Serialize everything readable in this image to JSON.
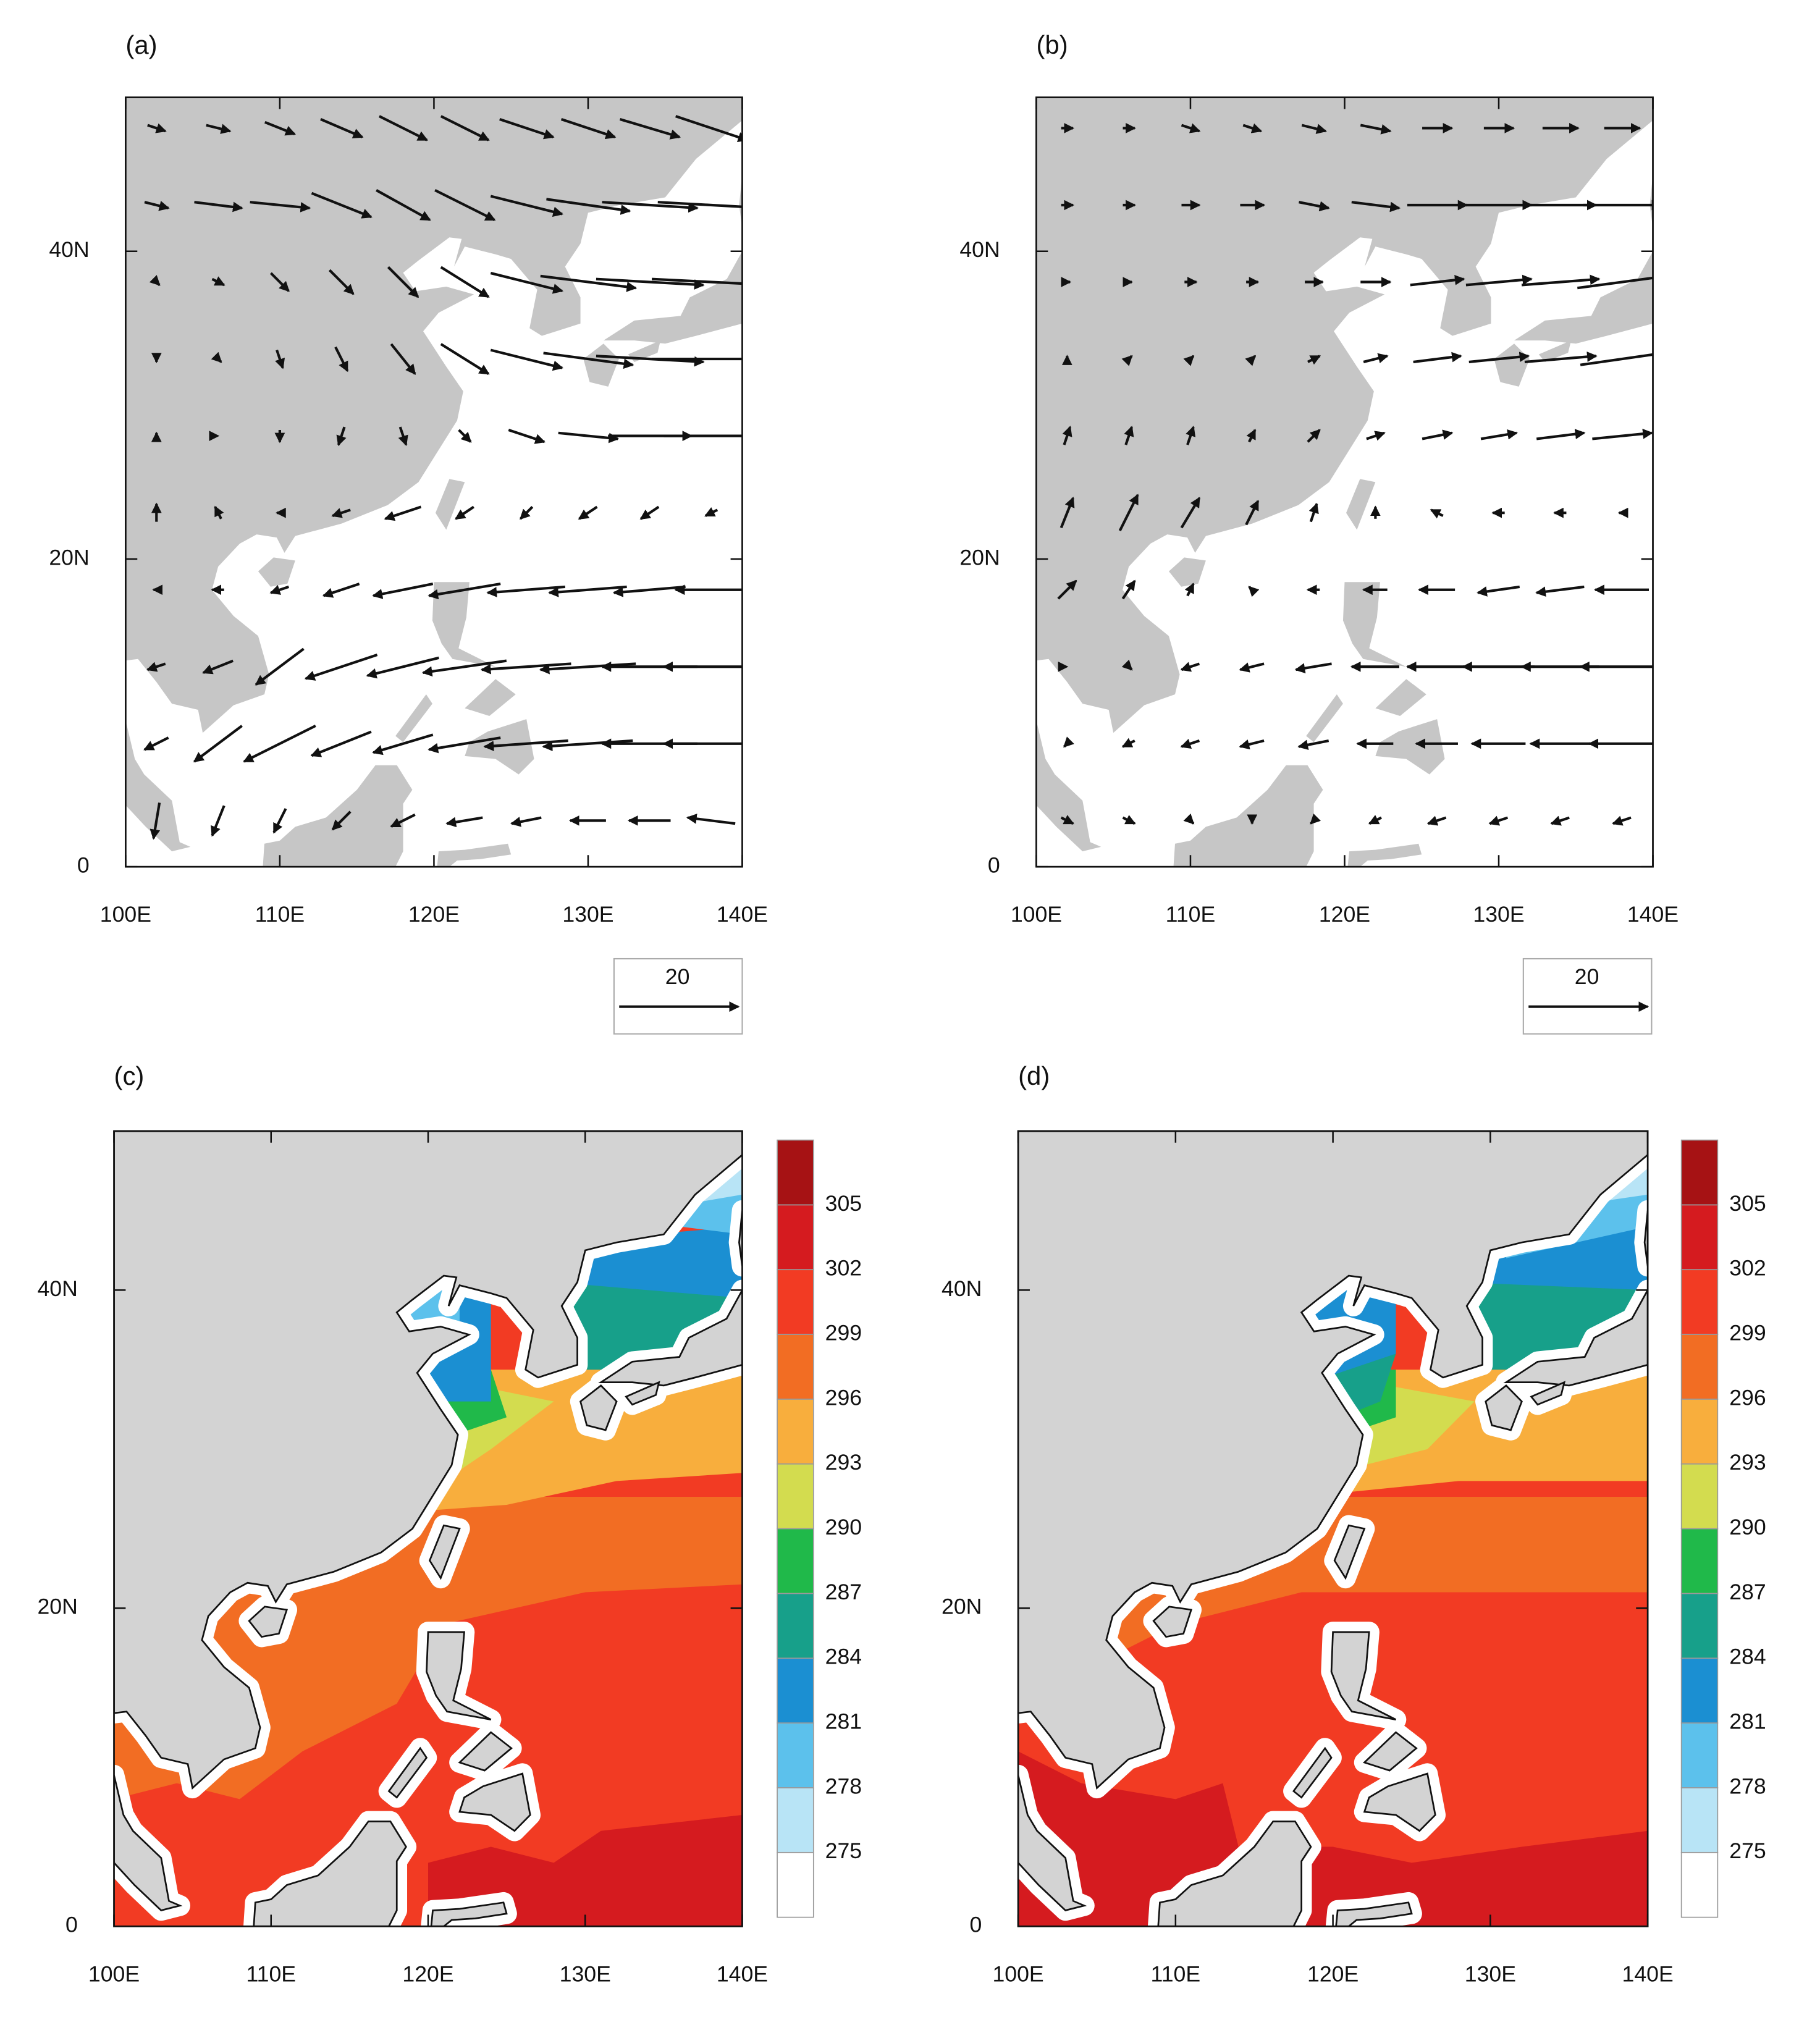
{
  "chart_data": [
    {
      "type": "vector",
      "label": "(a)",
      "xlim": [
        100,
        140
      ],
      "ylim": [
        0,
        50
      ],
      "xticks": [
        {
          "value": 100,
          "label": "100E"
        },
        {
          "value": 110,
          "label": "110E"
        },
        {
          "value": 120,
          "label": "120E"
        },
        {
          "value": 130,
          "label": "130E"
        },
        {
          "value": 140,
          "label": "140E"
        }
      ],
      "yticks": [
        0,
        {
          "value": 20,
          "label": "20N"
        },
        {
          "value": 40,
          "label": "40N"
        }
      ],
      "lon": [
        102,
        106,
        110,
        114,
        118,
        122,
        126,
        130,
        134,
        138
      ],
      "lat": [
        48,
        43,
        38,
        33,
        28,
        23,
        18,
        13,
        8,
        3
      ],
      "u": [
        [
          3,
          4,
          5,
          7,
          8,
          8,
          9,
          9,
          10,
          12
        ],
        [
          4,
          8,
          10,
          10,
          9,
          10,
          12,
          14,
          16,
          18
        ],
        [
          1,
          2,
          3,
          4,
          5,
          8,
          12,
          16,
          18,
          20
        ],
        [
          0,
          1,
          1,
          2,
          4,
          8,
          12,
          15,
          18,
          20
        ],
        [
          0,
          0,
          0,
          -1,
          1,
          2,
          6,
          10,
          14,
          16
        ],
        [
          0,
          -1,
          -1,
          -3,
          -6,
          -3,
          -2,
          -3,
          -3,
          -2
        ],
        [
          -1,
          -2,
          -3,
          -6,
          -10,
          -12,
          -13,
          -13,
          -12,
          -12
        ],
        [
          -3,
          -5,
          -8,
          -12,
          -12,
          -14,
          -15,
          -16,
          -16,
          -16
        ],
        [
          -4,
          -8,
          -12,
          -10,
          -10,
          -12,
          -14,
          -15,
          -16,
          -16
        ],
        [
          -1,
          -2,
          -2,
          -3,
          -4,
          -6,
          -5,
          -6,
          -7,
          -8
        ]
      ],
      "v": [
        [
          -1,
          -1,
          -2,
          -3,
          -4,
          -4,
          -3,
          -3,
          -3,
          -4
        ],
        [
          -1,
          -1,
          -1,
          -4,
          -5,
          -5,
          -3,
          -2,
          -1,
          -1
        ],
        [
          -1,
          -1,
          -3,
          -4,
          -5,
          -5,
          -3,
          -2,
          -1,
          -1
        ],
        [
          -1,
          -1,
          -3,
          -4,
          -5,
          -5,
          -3,
          -2,
          -1,
          0
        ],
        [
          1,
          0,
          -2,
          -3,
          -3,
          -2,
          -2,
          -1,
          0,
          0
        ],
        [
          3,
          2,
          0,
          -1,
          -2,
          -2,
          -2,
          -2,
          -2,
          -1
        ],
        [
          0,
          0,
          -1,
          -2,
          -2,
          -2,
          -1,
          -1,
          -1,
          0
        ],
        [
          -1,
          -2,
          -6,
          -4,
          -3,
          -2,
          -1,
          -1,
          0,
          0
        ],
        [
          -2,
          -6,
          -6,
          -4,
          -3,
          -2,
          -1,
          -1,
          0,
          0
        ],
        [
          -6,
          -5,
          -4,
          -3,
          -2,
          -1,
          -1,
          0,
          0,
          1
        ]
      ],
      "ref_vector": {
        "magnitude": 20
      }
    },
    {
      "type": "vector",
      "label": "(b)",
      "xlim": [
        100,
        140
      ],
      "ylim": [
        0,
        50
      ],
      "xticks": [
        {
          "value": 100,
          "label": "100E"
        },
        {
          "value": 110,
          "label": "110E"
        },
        {
          "value": 120,
          "label": "120E"
        },
        {
          "value": 130,
          "label": "130E"
        },
        {
          "value": 140,
          "label": "140E"
        }
      ],
      "yticks": [
        0,
        {
          "value": 20,
          "label": "20N"
        },
        {
          "value": 40,
          "label": "40N"
        }
      ],
      "lon": [
        102,
        106,
        110,
        114,
        118,
        122,
        126,
        130,
        134,
        138
      ],
      "lat": [
        48,
        43,
        38,
        33,
        28,
        23,
        18,
        13,
        8,
        3
      ],
      "u": [
        [
          2,
          2,
          3,
          3,
          4,
          5,
          5,
          5,
          6,
          6
        ],
        [
          2,
          2,
          3,
          4,
          5,
          8,
          10,
          11,
          12,
          13
        ],
        [
          1,
          1,
          2,
          2,
          3,
          5,
          9,
          11,
          13,
          15
        ],
        [
          0,
          1,
          1,
          1,
          2,
          4,
          8,
          10,
          12,
          14
        ],
        [
          1,
          1,
          1,
          1,
          2,
          3,
          5,
          6,
          8,
          10
        ],
        [
          2,
          3,
          3,
          2,
          1,
          0,
          -2,
          -2,
          -2,
          -1
        ],
        [
          3,
          2,
          1,
          -1,
          -2,
          -4,
          -6,
          -7,
          -8,
          -9
        ],
        [
          0,
          1,
          -3,
          -4,
          -6,
          -8,
          -10,
          -12,
          -13,
          -14
        ],
        [
          -1,
          -2,
          -3,
          -4,
          -5,
          -6,
          -7,
          -9,
          -10,
          -11
        ],
        [
          2,
          2,
          1,
          0,
          -1,
          -2,
          -3,
          -3,
          -3,
          -3
        ]
      ],
      "v": [
        [
          0,
          0,
          -1,
          -1,
          -1,
          -1,
          0,
          0,
          0,
          0
        ],
        [
          0,
          0,
          0,
          0,
          -1,
          -1,
          0,
          0,
          0,
          0
        ],
        [
          0,
          0,
          0,
          0,
          0,
          0,
          1,
          1,
          1,
          2
        ],
        [
          1,
          1,
          1,
          1,
          1,
          1,
          1,
          1,
          1,
          2
        ],
        [
          3,
          3,
          3,
          2,
          2,
          1,
          1,
          1,
          1,
          1
        ],
        [
          5,
          6,
          5,
          4,
          3,
          2,
          1,
          0,
          0,
          0
        ],
        [
          3,
          3,
          2,
          1,
          0,
          0,
          0,
          -1,
          -1,
          0
        ],
        [
          0,
          -1,
          -1,
          -1,
          -1,
          0,
          0,
          0,
          0,
          0
        ],
        [
          -1,
          -1,
          -1,
          -1,
          -1,
          0,
          0,
          0,
          0,
          0
        ],
        [
          -1,
          -1,
          -1,
          -1,
          -1,
          -1,
          -1,
          -1,
          -1,
          -1
        ]
      ],
      "ref_vector": {
        "magnitude": 20
      }
    },
    {
      "type": "filled_contour",
      "label": "(c)",
      "xlim": [
        100,
        140
      ],
      "ylim": [
        0,
        50
      ],
      "xticks": [
        {
          "value": 100,
          "label": "100E"
        },
        {
          "value": 110,
          "label": "110E"
        },
        {
          "value": 120,
          "label": "120E"
        },
        {
          "value": 130,
          "label": "130E"
        },
        {
          "value": 140,
          "label": "140E"
        }
      ],
      "yticks": [
        0,
        {
          "value": 20,
          "label": "20N"
        },
        {
          "value": 40,
          "label": "40N"
        }
      ],
      "colorbar": {
        "levels": [
          275,
          278,
          281,
          284,
          287,
          290,
          293,
          296,
          299,
          302,
          305
        ],
        "colors": [
          "#ffffff",
          "#b8e4f6",
          "#5cc1ec",
          "#1b8fd2",
          "#17a08a",
          "#20b94a",
          "#d3dc4f",
          "#f8ae3d",
          "#f26d23",
          "#f23b23",
          "#d51b1f",
          "#a61214"
        ]
      }
    },
    {
      "type": "filled_contour",
      "label": "(d)",
      "xlim": [
        100,
        140
      ],
      "ylim": [
        0,
        50
      ],
      "xticks": [
        {
          "value": 100,
          "label": "100E"
        },
        {
          "value": 110,
          "label": "110E"
        },
        {
          "value": 120,
          "label": "120E"
        },
        {
          "value": 130,
          "label": "130E"
        },
        {
          "value": 140,
          "label": "140E"
        }
      ],
      "yticks": [
        0,
        {
          "value": 20,
          "label": "20N"
        },
        {
          "value": 40,
          "label": "40N"
        }
      ],
      "colorbar": {
        "levels": [
          275,
          278,
          281,
          284,
          287,
          290,
          293,
          296,
          299,
          302,
          305
        ],
        "colors": [
          "#ffffff",
          "#b8e4f6",
          "#5cc1ec",
          "#1b8fd2",
          "#17a08a",
          "#20b94a",
          "#d3dc4f",
          "#f8ae3d",
          "#f26d23",
          "#f23b23",
          "#d51b1f",
          "#a61214"
        ]
      }
    }
  ]
}
